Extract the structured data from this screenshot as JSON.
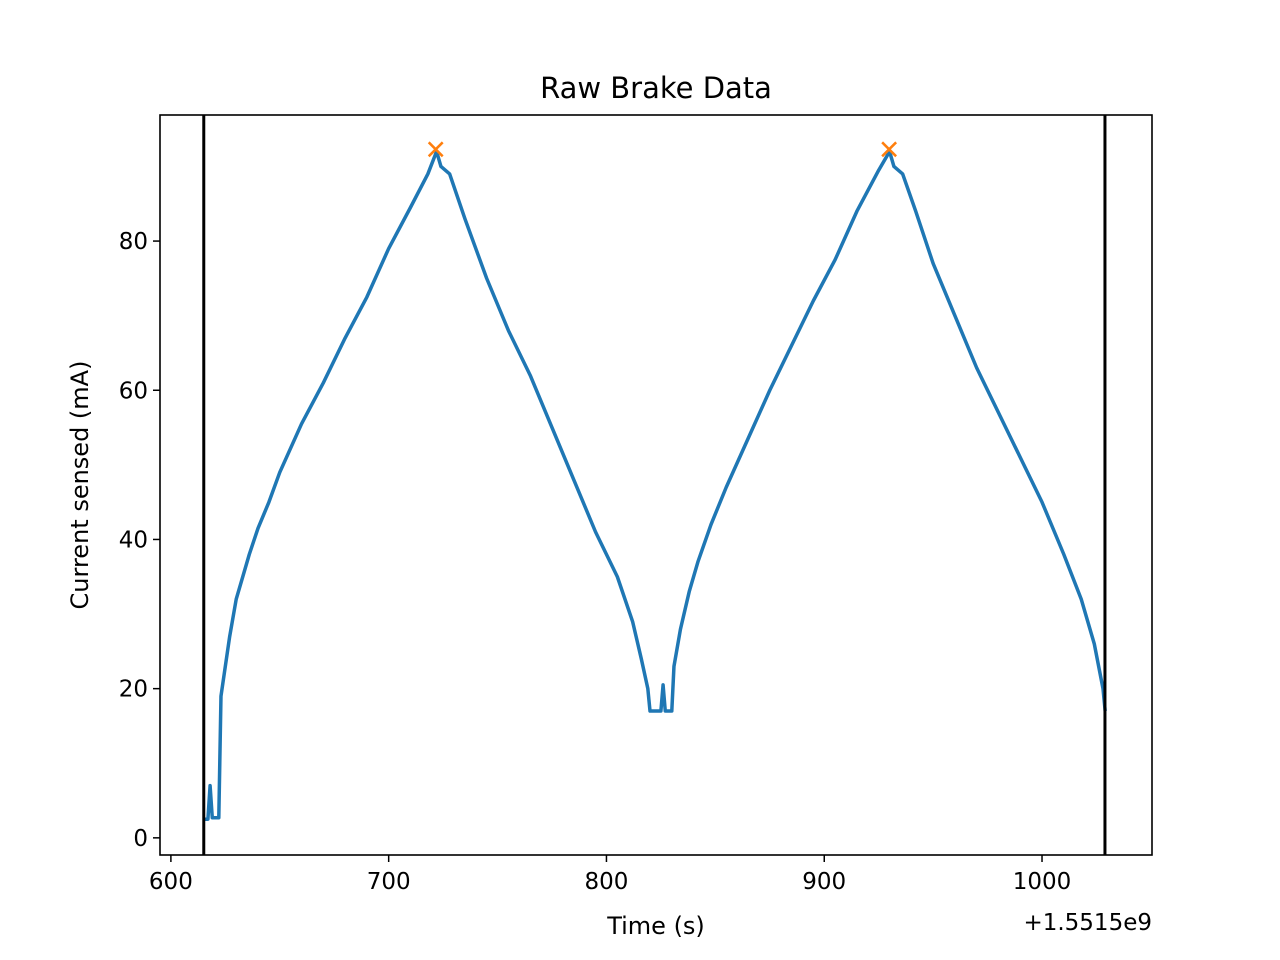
{
  "chart_data": {
    "type": "line",
    "title": "Raw Brake Data",
    "xlabel": "Time (s)",
    "ylabel": "Current sensed (mA)",
    "x_offset_label": "+1.5515e9",
    "xlim": [
      595,
      1050.5
    ],
    "xticks": [
      600,
      700,
      800,
      900,
      1000
    ],
    "ylim": [
      -2.3,
      96.9
    ],
    "yticks": [
      0,
      20,
      40,
      60,
      80
    ],
    "x": [
      615,
      617,
      618,
      619,
      622,
      623,
      625,
      627,
      630,
      633,
      636,
      640,
      645,
      650,
      660,
      670,
      680,
      690,
      700,
      710,
      718,
      722,
      724,
      728,
      735,
      745,
      755,
      765,
      775,
      785,
      795,
      805,
      812,
      816,
      819,
      820,
      825,
      826,
      827,
      830,
      831,
      834,
      838,
      842,
      848,
      855,
      865,
      875,
      885,
      895,
      905,
      915,
      925,
      930,
      932,
      936,
      942,
      950,
      960,
      970,
      980,
      990,
      1000,
      1010,
      1018,
      1024,
      1028,
      1029
    ],
    "series": [
      {
        "color": "#1f77b4",
        "values": [
          2.5,
          2.5,
          7,
          2.7,
          2.7,
          19,
          23,
          27,
          32,
          35,
          38,
          41.5,
          45,
          49,
          55.5,
          61,
          67,
          72.5,
          79,
          84.5,
          89,
          92,
          90,
          89,
          83,
          75,
          68,
          62,
          55,
          48,
          41,
          35,
          29,
          24,
          20,
          17,
          17,
          20.5,
          17,
          17,
          23,
          28,
          33,
          37,
          42,
          47,
          53.5,
          60,
          66,
          72,
          77.5,
          84,
          89.5,
          92,
          90,
          89,
          84,
          77,
          70,
          63,
          57,
          51,
          45,
          38,
          32,
          26,
          20,
          17
        ]
      }
    ],
    "vlines": {
      "color": "#000000",
      "x": [
        615.1,
        1028.9
      ]
    },
    "markers": {
      "color": "#ff7f0e",
      "x": [
        721.6,
        929.8
      ],
      "y": [
        92.3,
        92.3
      ]
    }
  }
}
